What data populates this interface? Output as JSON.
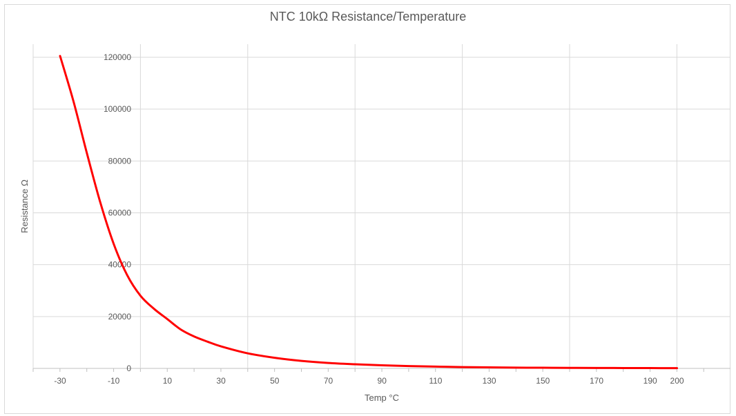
{
  "chart_data": {
    "type": "line",
    "title": "NTC 10kΩ Resistance/Temperature",
    "xlabel": "Temp °C",
    "ylabel": "Resistance Ω",
    "x_ticks": [
      "-30",
      "-10",
      "10",
      "30",
      "50",
      "70",
      "90",
      "110",
      "130",
      "150",
      "170",
      "190",
      "200"
    ],
    "y_ticks": [
      "0",
      "20000",
      "40000",
      "60000",
      "80000",
      "100000",
      "120000"
    ],
    "ylim": [
      0,
      120000
    ],
    "grid": true,
    "legend": "none",
    "line_color": "#ff0000",
    "x": [
      -30,
      -25,
      -20,
      -15,
      -10,
      -5,
      0,
      5,
      10,
      15,
      20,
      25,
      30,
      40,
      50,
      60,
      70,
      80,
      90,
      100,
      110,
      120,
      130,
      140,
      150,
      160,
      170,
      180,
      190,
      200
    ],
    "series": [
      {
        "values": [
          120500,
          103000,
          83000,
          64000,
          48000,
          36000,
          28000,
          23000,
          19000,
          15000,
          12300,
          10300,
          8500,
          5800,
          4100,
          2900,
          2100,
          1600,
          1200,
          900,
          700,
          500,
          400,
          300,
          250,
          200,
          170,
          140,
          120,
          100
        ]
      }
    ]
  }
}
